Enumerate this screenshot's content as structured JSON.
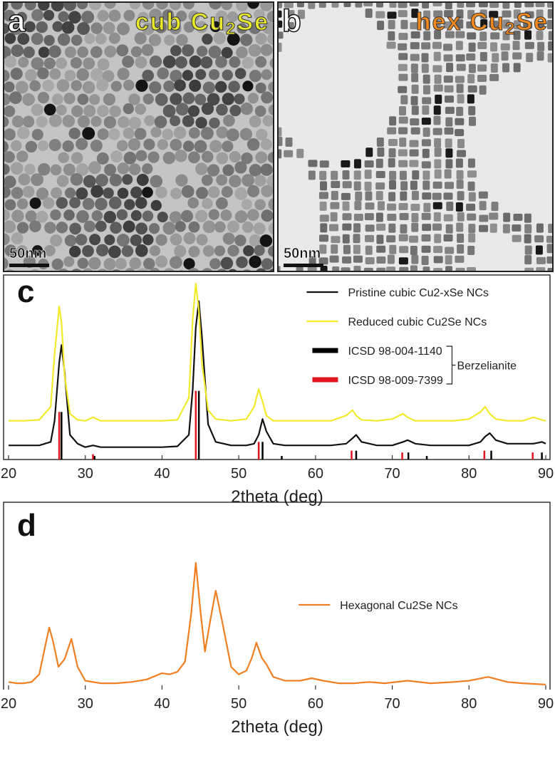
{
  "panels": [
    {
      "label": "a",
      "title": [
        "cub Cu",
        "2",
        "Se"
      ],
      "title_color": "#e6e62a",
      "scale_bar": "50nm"
    },
    {
      "label": "b",
      "title": [
        "hex Cu",
        "2",
        "Se"
      ],
      "title_color": "#f08a1e",
      "scale_bar": "50nm"
    }
  ],
  "chart_data": [
    {
      "type": "line",
      "panel_label": "c",
      "xlabel": "2theta (deg)",
      "xlim": [
        20,
        90
      ],
      "xticks": [
        20,
        30,
        40,
        50,
        60,
        70,
        80,
        90
      ],
      "ylim": [
        0,
        100
      ],
      "grid": false,
      "legend": "upper right",
      "annotation": "Berzelianite",
      "x": [
        20,
        22,
        24,
        25.5,
        26,
        26.6,
        26.9,
        27.3,
        28,
        29,
        30,
        31,
        32,
        34,
        36,
        38,
        40,
        42,
        43.5,
        44,
        44.4,
        44.8,
        45.2,
        46,
        47,
        49,
        51,
        52,
        52.6,
        53.1,
        53.6,
        54.5,
        56,
        58,
        60,
        62,
        64,
        64.8,
        65.3,
        66,
        68,
        70,
        71.4,
        72,
        73,
        75,
        78,
        80,
        81.5,
        82.1,
        82.7,
        83.5,
        85,
        87,
        88.4,
        89.5,
        90
      ],
      "series": [
        {
          "name": "Pristine cubic Cu2-xSe NCs",
          "color": "#111111",
          "style": "line",
          "values": [
            8,
            8,
            8,
            10,
            22,
            55,
            65,
            50,
            14,
            9,
            7,
            8,
            7,
            7,
            7,
            7,
            7,
            7.5,
            14,
            40,
            75,
            90,
            70,
            20,
            10,
            8,
            8,
            9,
            14,
            23,
            16,
            9,
            8,
            8,
            8,
            8,
            9,
            12,
            14,
            10,
            8,
            8,
            10,
            11,
            9,
            8,
            8,
            8,
            10,
            13,
            15,
            11,
            9,
            9,
            9,
            10,
            9
          ]
        },
        {
          "name": "Reduced cubic Cu2Se NCs",
          "color": "#f2ea2a",
          "style": "line",
          "values": [
            22,
            22,
            22.5,
            30,
            60,
            87,
            78,
            48,
            26,
            22.5,
            22,
            24,
            22,
            22,
            22,
            22,
            22,
            22.5,
            35,
            80,
            100,
            85,
            55,
            28,
            23,
            22,
            23,
            30,
            40,
            33,
            25,
            22,
            22,
            22,
            22,
            22,
            25,
            28,
            25,
            22.5,
            22,
            23,
            26,
            24,
            22,
            22,
            22,
            23,
            27,
            30,
            26,
            23,
            22,
            22,
            24,
            22.5,
            22
          ]
        },
        {
          "name": "ICSD 98-004-1140",
          "color": "#000000",
          "style": "stick",
          "x": [
            26.9,
            31.2,
            44.8,
            53.1,
            55.6,
            65.3,
            72.1,
            74.5,
            82.9,
            89.5
          ],
          "values": [
            27,
            2,
            39,
            10,
            2,
            5,
            4,
            2,
            5,
            4
          ]
        },
        {
          "name": "ICSD 98-009-7399",
          "color": "#e0141e",
          "style": "stick",
          "x": [
            26.6,
            31,
            44.4,
            52.6,
            64.7,
            71.3,
            82,
            88.3
          ],
          "values": [
            27,
            3,
            39,
            10,
            5,
            4,
            5,
            4
          ]
        }
      ]
    },
    {
      "type": "line",
      "panel_label": "d",
      "xlabel": "2theta (deg)",
      "xlim": [
        20,
        90
      ],
      "xticks": [
        20,
        30,
        40,
        50,
        60,
        70,
        80,
        90
      ],
      "ylim": [
        0,
        100
      ],
      "grid": false,
      "legend": "center right",
      "x": [
        20,
        21,
        22,
        23,
        24,
        24.8,
        25.3,
        25.8,
        26.5,
        27.3,
        28.2,
        29,
        30,
        32,
        34,
        36,
        38,
        40,
        41,
        42,
        43,
        43.8,
        44.4,
        45,
        45.6,
        46.3,
        47,
        47.8,
        49,
        50,
        51,
        51.7,
        52.3,
        53,
        53.6,
        54.5,
        56,
        58,
        59.5,
        61,
        63,
        65,
        67,
        69,
        72,
        75,
        78,
        80,
        82.5,
        85,
        87,
        90
      ],
      "series": [
        {
          "name": "Hexagonal Cu2Se NCs",
          "color": "#f07f22",
          "style": "line",
          "values": [
            6,
            5,
            5,
            6,
            12,
            35,
            49,
            38,
            18,
            24,
            40,
            18,
            7,
            5,
            5,
            6,
            8,
            13,
            12,
            14,
            22,
            60,
            100,
            62,
            30,
            55,
            78,
            55,
            18,
            12,
            15,
            25,
            37,
            25,
            20,
            10,
            7,
            7,
            9,
            7,
            5,
            5,
            6,
            5,
            7,
            5,
            6,
            7,
            10,
            6,
            5,
            4
          ]
        }
      ]
    }
  ]
}
